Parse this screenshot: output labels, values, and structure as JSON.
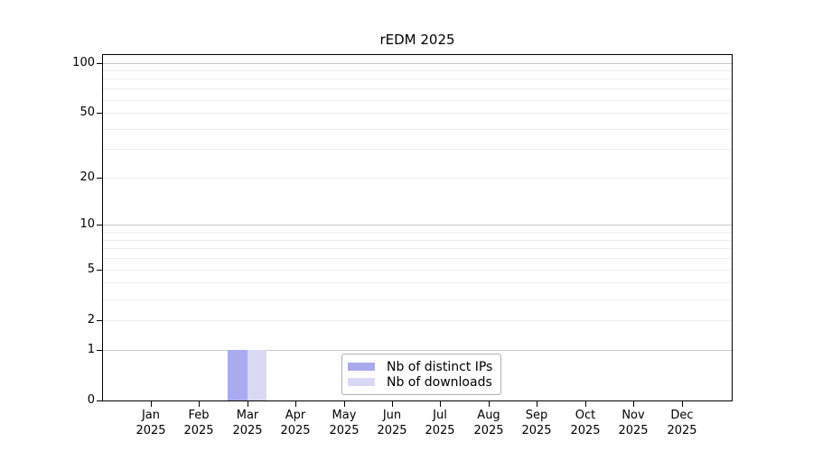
{
  "figure": {
    "title": "rEDM 2025"
  },
  "chart_data": {
    "type": "bar",
    "title": "rEDM 2025",
    "categories": [
      "Jan 2025",
      "Feb 2025",
      "Mar 2025",
      "Apr 2025",
      "May 2025",
      "Jun 2025",
      "Jul 2025",
      "Aug 2025",
      "Sep 2025",
      "Oct 2025",
      "Nov 2025",
      "Dec 2025"
    ],
    "x_tick_months": [
      "Jan",
      "Feb",
      "Mar",
      "Apr",
      "May",
      "Jun",
      "Jul",
      "Aug",
      "Sep",
      "Oct",
      "Nov",
      "Dec"
    ],
    "x_tick_year": "2025",
    "series": [
      {
        "name": "Nb of distinct IPs",
        "color": "#aaaaee",
        "values": [
          0,
          0,
          1,
          0,
          0,
          0,
          0,
          0,
          0,
          0,
          0,
          0
        ]
      },
      {
        "name": "Nb of downloads",
        "color": "#d9d9f6",
        "values": [
          0,
          0,
          1,
          0,
          0,
          0,
          0,
          0,
          0,
          0,
          0,
          0
        ]
      }
    ],
    "xlabel": "",
    "ylabel": "",
    "y_scale": "log10(1+v)",
    "ylim": [
      0,
      114
    ],
    "y_ticks": [
      0,
      1,
      2,
      5,
      10,
      20,
      50,
      100
    ],
    "y_major_gridlines": [
      1,
      10,
      100
    ],
    "y_minor_gridlines": [
      2,
      3,
      4,
      5,
      6,
      7,
      8,
      9,
      20,
      30,
      40,
      50,
      60,
      70,
      80,
      90
    ],
    "grid": "horizontal only",
    "legend_position": "inside bottom-center",
    "colors": {
      "background": "#ffffff",
      "axis": "#000000",
      "major_grid": "#c9c9c9",
      "minor_grid": "#ededed",
      "legend_border": "#b0b0b0"
    }
  }
}
